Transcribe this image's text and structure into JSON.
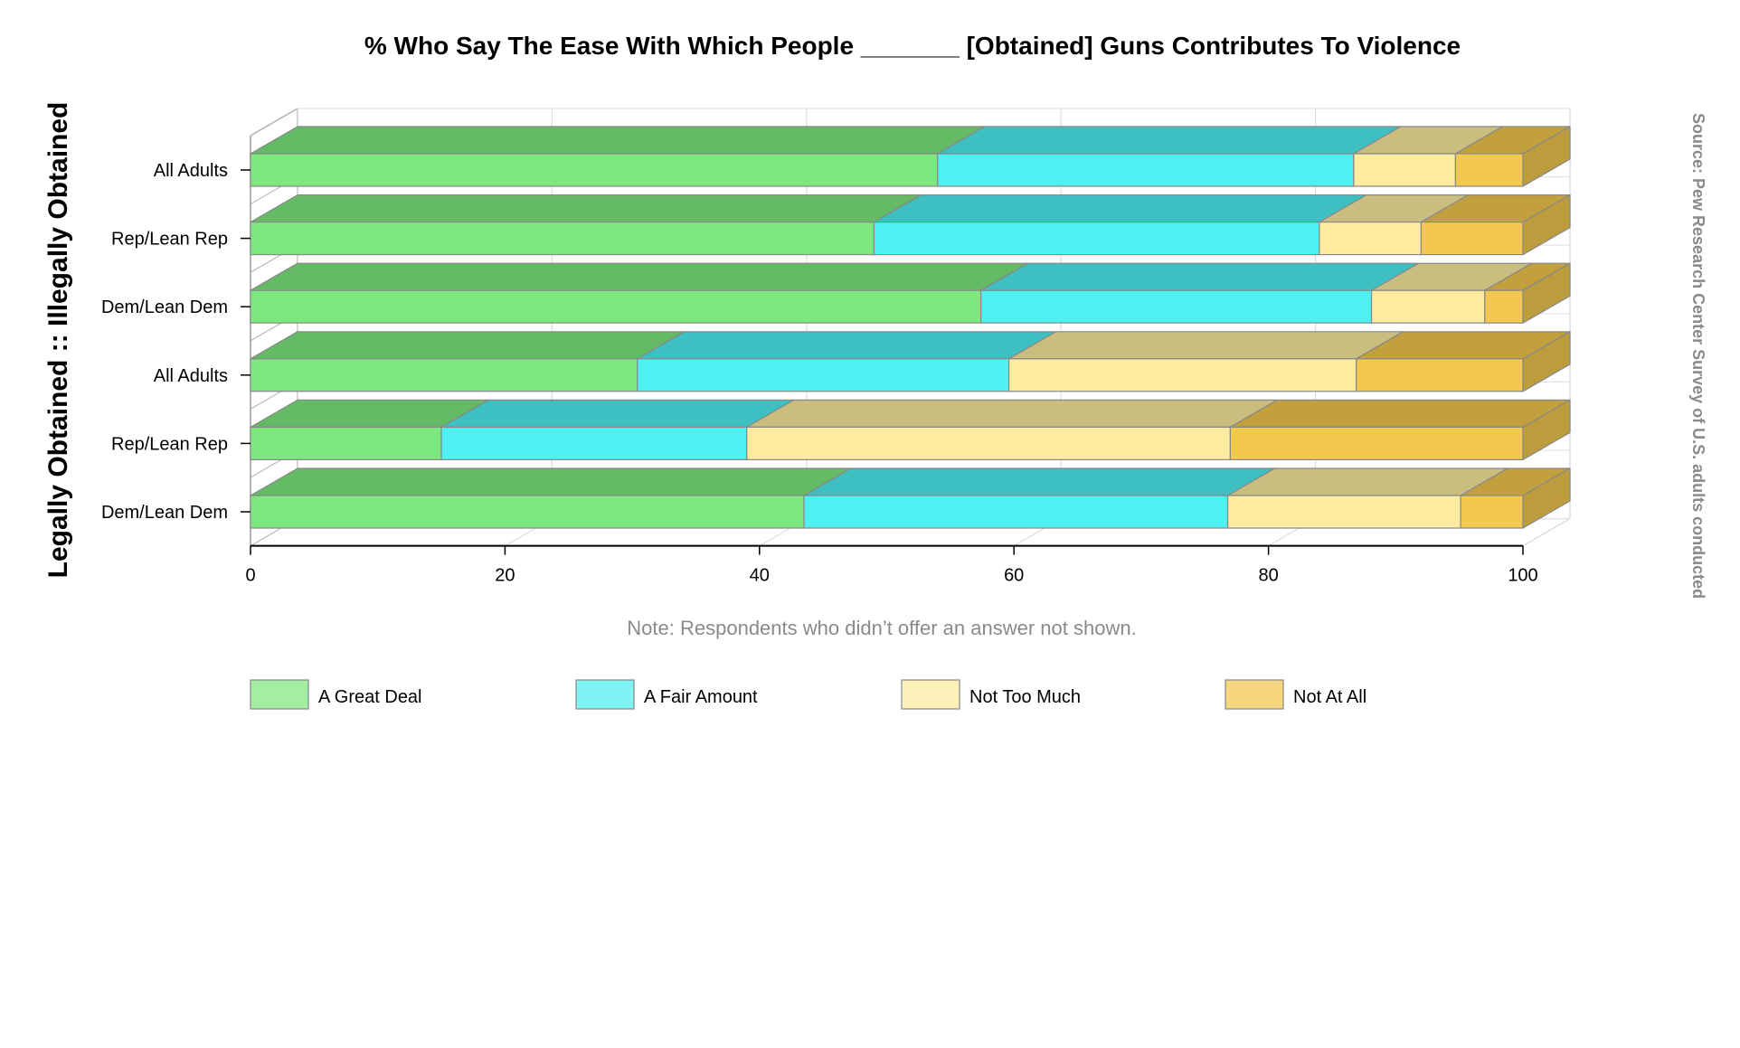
{
  "chart_data": {
    "type": "bar",
    "orientation": "horizontal",
    "stacked": true,
    "style": "3d",
    "title": "% Who Say The Ease With Which People _______ [Obtained] Guns Contributes To Violence",
    "ylabel": "Legally Obtained :: Illegally Obtained",
    "xlabel": "",
    "note": "Note: Respondents who didn’t offer an answer not shown.",
    "source": "Source: Pew Research Center Survey of U.S. adults conducted",
    "xlim": [
      0,
      100
    ],
    "xticks": [
      "0",
      "20",
      "40",
      "60",
      "80",
      "100"
    ],
    "grid": true,
    "legend_position": "bottom",
    "categories": [
      "All Adults",
      "Rep/Lean Rep",
      "Dem/Lean Dem",
      "All Adults",
      "Rep/Lean Rep",
      "Dem/Lean Dem"
    ],
    "series": [
      {
        "name": "A Great Deal",
        "color": "#7ee87e",
        "values": [
          54,
          49,
          57.4,
          30.4,
          15,
          43.5
        ]
      },
      {
        "name": "A Fair Amount",
        "color": "#4ef0f2",
        "values": [
          32.7,
          35,
          30.7,
          29.2,
          24,
          33.3
        ]
      },
      {
        "name": "Not Too Much",
        "color": "#fdeca0",
        "values": [
          8,
          8,
          8.9,
          27.3,
          38,
          18.3
        ]
      },
      {
        "name": "Not At All",
        "color": "#f2c84e",
        "values": [
          5.3,
          8,
          3,
          13.1,
          23,
          4.9
        ]
      }
    ]
  }
}
